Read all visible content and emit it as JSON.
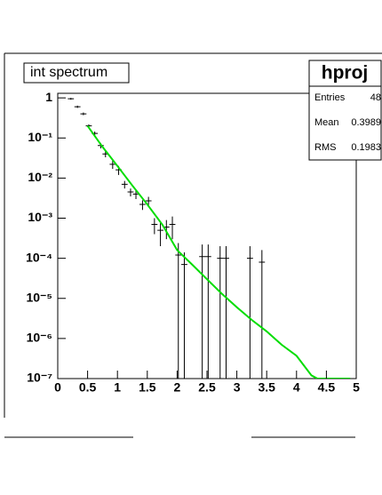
{
  "chart_data": {
    "type": "errorbar",
    "title": "int spectrum",
    "log_y": true,
    "xlim": [
      0,
      5
    ],
    "ylim": [
      1e-07,
      1.3
    ],
    "xticks": [
      0,
      0.5,
      1,
      1.5,
      2,
      2.5,
      3,
      3.5,
      4,
      4.5,
      5
    ],
    "yticks": [
      {
        "value": 1e-07,
        "label": "10⁻⁷"
      },
      {
        "value": 1e-06,
        "label": "10⁻⁶"
      },
      {
        "value": 1e-05,
        "label": "10⁻⁵"
      },
      {
        "value": 0.0001,
        "label": "10⁻⁴"
      },
      {
        "value": 0.001,
        "label": "10⁻³"
      },
      {
        "value": 0.01,
        "label": "10⁻²"
      },
      {
        "value": 0.1,
        "label": "10⁻¹"
      },
      1
    ],
    "series": {
      "color": "#000000",
      "x": [
        0.22,
        0.33,
        0.43,
        0.52,
        0.62,
        0.72,
        0.8,
        0.92,
        1.02,
        1.12,
        1.22,
        1.31,
        1.42,
        1.52,
        1.62,
        1.72,
        1.82,
        1.92,
        2.02,
        2.12,
        2.42,
        2.52,
        2.72,
        2.82,
        3.22,
        3.42
      ],
      "values": [
        0.95,
        0.6,
        0.4,
        0.2,
        0.13,
        0.065,
        0.04,
        0.022,
        0.016,
        0.007,
        0.0045,
        0.004,
        0.0022,
        0.0027,
        0.0007,
        0.0005,
        0.0006,
        0.0007,
        0.00012,
        7e-05,
        0.00011,
        0.00011,
        0.0001,
        0.0001,
        0.0001,
        8e-05
      ],
      "errors": [
        0.05,
        0.04,
        0.03,
        0.02,
        0.015,
        0.01,
        0.007,
        0.005,
        0.004,
        0.0015,
        0.001,
        0.001,
        0.0006,
        0.0007,
        0.0003,
        0.0003,
        0.0003,
        0.0004,
        0.00012,
        7e-05,
        0.00011,
        0.00011,
        0.0001,
        0.0001,
        0.0001,
        8e-05
      ]
    },
    "fit": {
      "color": "#00dd00",
      "x": [
        0.5,
        0.75,
        1,
        1.25,
        1.5,
        1.75,
        2,
        2.25,
        2.5,
        2.75,
        3,
        3.25,
        3.5,
        3.75,
        4,
        4.25,
        4.35,
        4.9
      ],
      "values": [
        0.2,
        0.06,
        0.02,
        0.0065,
        0.0022,
        0.0007,
        0.00016,
        7e-05,
        3e-05,
        1.3e-05,
        6e-06,
        2.9e-06,
        1.5e-06,
        7e-07,
        3.7e-07,
        1.2e-07,
        1e-07,
        1e-07
      ]
    },
    "stats": {
      "title": "hproj",
      "rows": [
        {
          "label": "Entries",
          "value": 48
        },
        {
          "label": "Mean",
          "value": 0.3989
        },
        {
          "label": "RMS",
          "value": 0.1983
        }
      ]
    }
  }
}
